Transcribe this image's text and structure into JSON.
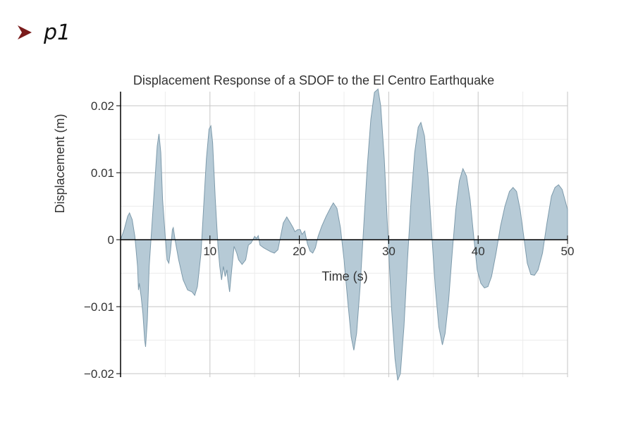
{
  "prompt": {
    "label": "p1"
  },
  "colors": {
    "fill": "#b6cad6",
    "stroke": "#7d9aab",
    "grid": "#c6c6c6",
    "minor_grid": "#ececec",
    "axis": "#000000",
    "prompt_chevron": "#7a1c1c"
  },
  "chart_data": {
    "type": "area",
    "title": "Displacement Response of a SDOF to the El Centro Earthquake",
    "xlabel": "Time (s)",
    "ylabel": "Displacement (m)",
    "xlim": [
      0,
      50
    ],
    "ylim": [
      -0.021,
      0.023
    ],
    "xticks": [
      10,
      20,
      30,
      40,
      50
    ],
    "xtick_labels": [
      "10",
      "20",
      "30",
      "40",
      "50"
    ],
    "yticks": [
      0.02,
      0.01,
      0,
      -0.01,
      -0.02
    ],
    "ytick_labels": [
      "0.02",
      "0.01",
      "0",
      "−0.01",
      "−0.02"
    ],
    "grid": true,
    "series": [
      {
        "name": "displacement",
        "points": [
          [
            0,
            0
          ],
          [
            0.4,
            0.0015
          ],
          [
            0.8,
            0.0035
          ],
          [
            1.0,
            0.004
          ],
          [
            1.3,
            0.003
          ],
          [
            1.6,
            0.0005
          ],
          [
            1.9,
            -0.004
          ],
          [
            2.0,
            -0.0075
          ],
          [
            2.1,
            -0.0065
          ],
          [
            2.3,
            -0.0085
          ],
          [
            2.5,
            -0.011
          ],
          [
            2.7,
            -0.015
          ],
          [
            2.8,
            -0.016
          ],
          [
            3.0,
            -0.012
          ],
          [
            3.2,
            -0.004
          ],
          [
            3.5,
            0.002
          ],
          [
            3.8,
            0.008
          ],
          [
            4.1,
            0.014
          ],
          [
            4.3,
            0.0158
          ],
          [
            4.5,
            0.013
          ],
          [
            4.7,
            0.006
          ],
          [
            5.0,
            0.0005
          ],
          [
            5.2,
            -0.003
          ],
          [
            5.4,
            -0.0035
          ],
          [
            5.6,
            -0.0015
          ],
          [
            5.8,
            0.0015
          ],
          [
            5.9,
            0.0018
          ],
          [
            6.1,
            0
          ],
          [
            6.5,
            -0.003
          ],
          [
            7.0,
            -0.006
          ],
          [
            7.5,
            -0.0075
          ],
          [
            8.0,
            -0.0078
          ],
          [
            8.3,
            -0.0083
          ],
          [
            8.6,
            -0.007
          ],
          [
            9.0,
            -0.002
          ],
          [
            9.3,
            0.005
          ],
          [
            9.6,
            0.012
          ],
          [
            9.9,
            0.0165
          ],
          [
            10.1,
            0.017
          ],
          [
            10.3,
            0.0145
          ],
          [
            10.6,
            0.006
          ],
          [
            10.9,
            -0.001
          ],
          [
            11.1,
            -0.004
          ],
          [
            11.3,
            -0.006
          ],
          [
            11.5,
            -0.004
          ],
          [
            11.7,
            -0.0055
          ],
          [
            11.9,
            -0.0045
          ],
          [
            12.0,
            -0.006
          ],
          [
            12.2,
            -0.0078
          ],
          [
            12.4,
            -0.005
          ],
          [
            12.7,
            -0.001
          ],
          [
            13.0,
            -0.002
          ],
          [
            13.2,
            -0.003
          ],
          [
            13.6,
            -0.0037
          ],
          [
            14.0,
            -0.003
          ],
          [
            14.3,
            -0.0008
          ],
          [
            14.6,
            -0.0005
          ],
          [
            15.0,
            0.0005
          ],
          [
            15.2,
            0.0002
          ],
          [
            15.4,
            0.0006
          ],
          [
            15.6,
            -0.0008
          ],
          [
            16.0,
            -0.0012
          ],
          [
            16.4,
            -0.0015
          ],
          [
            16.8,
            -0.0018
          ],
          [
            17.2,
            -0.002
          ],
          [
            17.6,
            -0.0015
          ],
          [
            17.8,
            -0.0002
          ],
          [
            18.2,
            0.0025
          ],
          [
            18.6,
            0.0034
          ],
          [
            19.0,
            0.0025
          ],
          [
            19.3,
            0.0018
          ],
          [
            19.5,
            0.0012
          ],
          [
            19.8,
            0.0015
          ],
          [
            20.1,
            0.0015
          ],
          [
            20.3,
            0.0008
          ],
          [
            20.6,
            0.0013
          ],
          [
            20.9,
            -0.0006
          ],
          [
            21.2,
            -0.0017
          ],
          [
            21.5,
            -0.002
          ],
          [
            21.8,
            -0.0012
          ],
          [
            22.1,
            0.0005
          ],
          [
            22.5,
            0.002
          ],
          [
            23.0,
            0.0035
          ],
          [
            23.5,
            0.0048
          ],
          [
            23.8,
            0.0055
          ],
          [
            24.2,
            0.0047
          ],
          [
            24.6,
            0.0018
          ],
          [
            25.0,
            -0.003
          ],
          [
            25.4,
            -0.009
          ],
          [
            25.8,
            -0.0145
          ],
          [
            26.1,
            -0.0165
          ],
          [
            26.4,
            -0.014
          ],
          [
            26.8,
            -0.007
          ],
          [
            27.2,
            0.002
          ],
          [
            27.6,
            0.011
          ],
          [
            28.0,
            0.018
          ],
          [
            28.4,
            0.022
          ],
          [
            28.8,
            0.0225
          ],
          [
            29.1,
            0.02
          ],
          [
            29.5,
            0.012
          ],
          [
            29.9,
            0.001
          ],
          [
            30.3,
            -0.01
          ],
          [
            30.7,
            -0.0178
          ],
          [
            31.0,
            -0.021
          ],
          [
            31.3,
            -0.02
          ],
          [
            31.7,
            -0.013
          ],
          [
            32.1,
            -0.003
          ],
          [
            32.5,
            0.006
          ],
          [
            32.9,
            0.013
          ],
          [
            33.3,
            0.0168
          ],
          [
            33.6,
            0.0175
          ],
          [
            34.0,
            0.0155
          ],
          [
            34.4,
            0.0095
          ],
          [
            34.8,
            0.001
          ],
          [
            35.2,
            -0.007
          ],
          [
            35.6,
            -0.013
          ],
          [
            36.0,
            -0.0157
          ],
          [
            36.3,
            -0.014
          ],
          [
            36.7,
            -0.009
          ],
          [
            37.1,
            -0.002
          ],
          [
            37.5,
            0.0045
          ],
          [
            37.9,
            0.0088
          ],
          [
            38.3,
            0.0106
          ],
          [
            38.7,
            0.0095
          ],
          [
            39.1,
            0.006
          ],
          [
            39.5,
            0.0005
          ],
          [
            39.9,
            -0.0045
          ],
          [
            40.3,
            -0.0065
          ],
          [
            40.7,
            -0.0072
          ],
          [
            41.1,
            -0.007
          ],
          [
            41.5,
            -0.0055
          ],
          [
            42.0,
            -0.002
          ],
          [
            42.5,
            0.002
          ],
          [
            43.0,
            0.005
          ],
          [
            43.5,
            0.0072
          ],
          [
            43.9,
            0.0078
          ],
          [
            44.3,
            0.0072
          ],
          [
            44.7,
            0.0045
          ],
          [
            45.1,
            0.0005
          ],
          [
            45.5,
            -0.0035
          ],
          [
            45.9,
            -0.0052
          ],
          [
            46.3,
            -0.0053
          ],
          [
            46.7,
            -0.0045
          ],
          [
            47.2,
            -0.002
          ],
          [
            47.7,
            0.0025
          ],
          [
            48.2,
            0.0065
          ],
          [
            48.6,
            0.0078
          ],
          [
            49.0,
            0.0082
          ],
          [
            49.4,
            0.0075
          ],
          [
            49.8,
            0.0055
          ],
          [
            50,
            0.0045
          ]
        ]
      }
    ]
  }
}
